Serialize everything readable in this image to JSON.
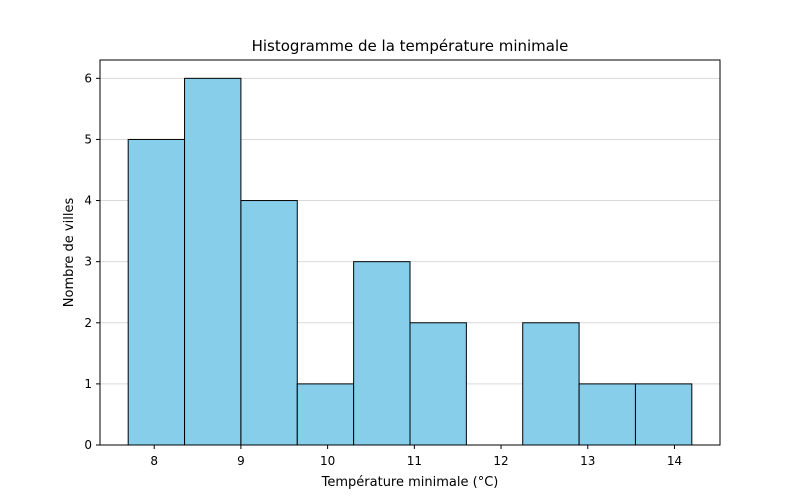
{
  "chart_data": {
    "type": "bar",
    "title": "Histogramme de la température minimale",
    "xlabel": "Température minimale (°C)",
    "ylabel": "Nombre de villes",
    "bins": [
      {
        "start": 7.7,
        "end": 8.35,
        "count": 5
      },
      {
        "start": 8.35,
        "end": 9.0,
        "count": 6
      },
      {
        "start": 9.0,
        "end": 9.65,
        "count": 4
      },
      {
        "start": 9.65,
        "end": 10.3,
        "count": 1
      },
      {
        "start": 10.3,
        "end": 10.95,
        "count": 3
      },
      {
        "start": 10.95,
        "end": 11.6,
        "count": 2
      },
      {
        "start": 11.6,
        "end": 12.25,
        "count": 0
      },
      {
        "start": 12.25,
        "end": 12.9,
        "count": 2
      },
      {
        "start": 12.9,
        "end": 13.55,
        "count": 1
      },
      {
        "start": 13.55,
        "end": 14.2,
        "count": 1
      }
    ],
    "xlim": [
      7.375,
      14.525
    ],
    "ylim": [
      0,
      6.3
    ],
    "xticks": [
      8,
      9,
      10,
      11,
      12,
      13,
      14
    ],
    "yticks": [
      0,
      1,
      2,
      3,
      4,
      5,
      6
    ],
    "grid": "y",
    "bar_color": "#87ceeb",
    "edge_color": "#000000",
    "grid_color": "#d9d9d9"
  }
}
